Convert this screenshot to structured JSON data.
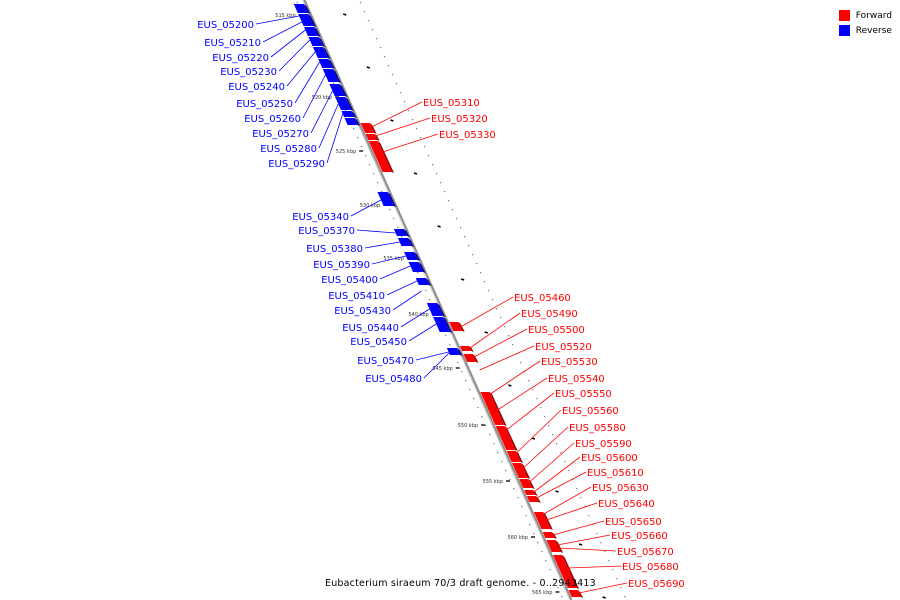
{
  "caption": "Eubacterium siraeum 70/3 draft genome. - 0..2943413",
  "colors": {
    "forward": "#ff0000",
    "reverse": "#0000ff",
    "backbone": "#888888"
  },
  "legend": [
    {
      "label": "Forward",
      "color": "#ff0000"
    },
    {
      "label": "Reverse",
      "color": "#0000ff"
    }
  ],
  "kbp_ticks": [
    "515 kbp",
    "520 kbp",
    "525 kbp",
    "530 kbp",
    "535 kbp",
    "540 kbp",
    "545 kbp",
    "550 kbp",
    "555 kbp",
    "560 kbp",
    "565 kbp"
  ],
  "reverse_genes": [
    "EUS_05200",
    "EUS_05210",
    "EUS_05220",
    "EUS_05230",
    "EUS_05240",
    "EUS_05250",
    "EUS_05260",
    "EUS_05270",
    "EUS_05280",
    "EUS_05290",
    "EUS_05340",
    "EUS_05370",
    "EUS_05380",
    "EUS_05390",
    "EUS_05400",
    "EUS_05410",
    "EUS_05430",
    "EUS_05440",
    "EUS_05450",
    "EUS_05470",
    "EUS_05480"
  ],
  "forward_genes": [
    "EUS_05310",
    "EUS_05320",
    "EUS_05330",
    "EUS_05460",
    "EUS_05490",
    "EUS_05500",
    "EUS_05520",
    "EUS_05530",
    "EUS_05540",
    "EUS_05550",
    "EUS_05560",
    "EUS_05580",
    "EUS_05590",
    "EUS_05600",
    "EUS_05610",
    "EUS_05630",
    "EUS_05640",
    "EUS_05650",
    "EUS_05660",
    "EUS_05670",
    "EUS_05680",
    "EUS_05690"
  ]
}
